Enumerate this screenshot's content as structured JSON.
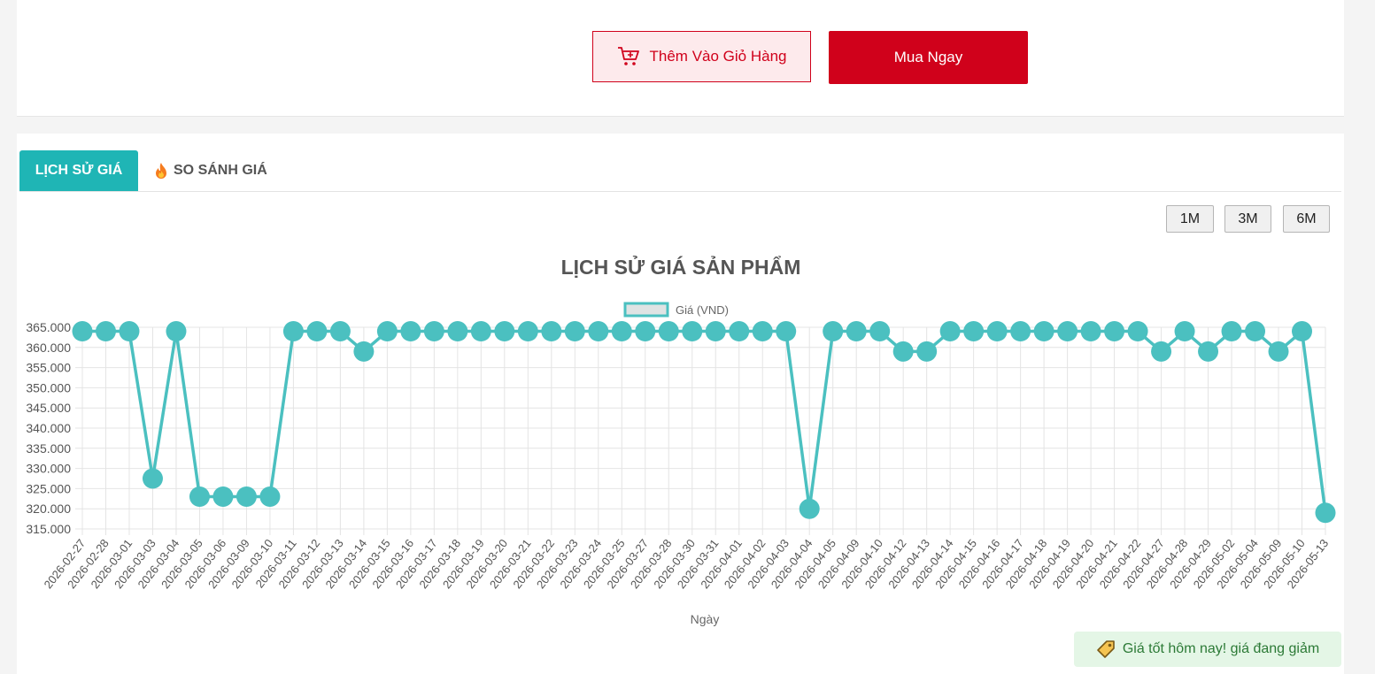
{
  "actions": {
    "add_to_cart_label": "Thêm Vào Giỏ Hàng",
    "buy_now_label": "Mua Ngay"
  },
  "tabs": {
    "price_history": "LỊCH SỬ GIÁ",
    "compare": "SO SÁNH GIÁ"
  },
  "range_buttons": [
    "1M",
    "3M",
    "6M"
  ],
  "badge_text": "Giá tốt hôm nay! giá đang giảm",
  "colors": {
    "brand_red": "#d0011b",
    "teal": "#1fb5b5",
    "series": "#4bc0c0",
    "badge_bg": "#e4f6e6",
    "badge_text": "#2c7a36"
  },
  "chart_data": {
    "type": "line",
    "title": "LỊCH SỬ GIÁ SẢN PHẨM",
    "xlabel": "Ngày",
    "ylabel": "",
    "legend_position": "top",
    "grid": true,
    "ylim": [
      315000,
      365000
    ],
    "yticks": [
      365000,
      360000,
      355000,
      350000,
      345000,
      340000,
      335000,
      330000,
      325000,
      320000,
      315000
    ],
    "ytick_labels": [
      "365.000",
      "360.000",
      "355.000",
      "350.000",
      "345.000",
      "340.000",
      "335.000",
      "330.000",
      "325.000",
      "320.000",
      "315.000"
    ],
    "categories": [
      "2026-02-27",
      "2026-02-28",
      "2026-03-01",
      "2026-03-03",
      "2026-03-04",
      "2026-03-05",
      "2026-03-06",
      "2026-03-09",
      "2026-03-10",
      "2026-03-11",
      "2026-03-12",
      "2026-03-13",
      "2026-03-14",
      "2026-03-15",
      "2026-03-16",
      "2026-03-17",
      "2026-03-18",
      "2026-03-19",
      "2026-03-20",
      "2026-03-21",
      "2026-03-22",
      "2026-03-23",
      "2026-03-24",
      "2026-03-25",
      "2026-03-27",
      "2026-03-28",
      "2026-03-30",
      "2026-03-31",
      "2026-04-01",
      "2026-04-02",
      "2026-04-03",
      "2026-04-04",
      "2026-04-05",
      "2026-04-09",
      "2026-04-10",
      "2026-04-12",
      "2026-04-13",
      "2026-04-14",
      "2026-04-15",
      "2026-04-16",
      "2026-04-17",
      "2026-04-18",
      "2026-04-19",
      "2026-04-20",
      "2026-04-21",
      "2026-04-22",
      "2026-04-27",
      "2026-04-28",
      "2026-04-29",
      "2026-05-02",
      "2026-05-04",
      "2026-05-09",
      "2026-05-10",
      "2026-05-13"
    ],
    "series": [
      {
        "name": "Giá (VND)",
        "values": [
          364000,
          364000,
          364000,
          327500,
          364000,
          323000,
          323000,
          323000,
          323000,
          364000,
          364000,
          364000,
          359000,
          364000,
          364000,
          364000,
          364000,
          364000,
          364000,
          364000,
          364000,
          364000,
          364000,
          364000,
          364000,
          364000,
          364000,
          364000,
          364000,
          364000,
          364000,
          320000,
          364000,
          364000,
          364000,
          359000,
          359000,
          364000,
          364000,
          364000,
          364000,
          364000,
          364000,
          364000,
          364000,
          364000,
          359000,
          364000,
          359000,
          364000,
          364000,
          359000,
          364000,
          319000
        ]
      }
    ]
  }
}
